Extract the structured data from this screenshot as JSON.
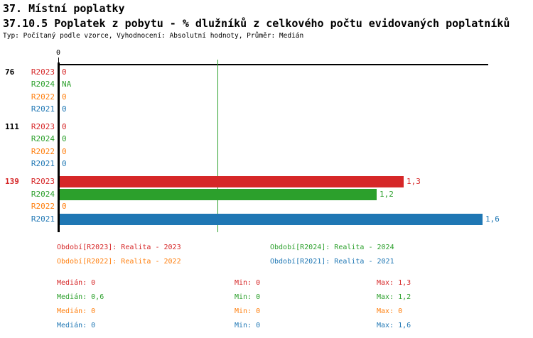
{
  "header": {
    "title": "37. Místní poplatky",
    "subtitle": "37.10.5 Poplatek z pobytu - % dlužníků z celkového počtu evidovaných poplatníků",
    "meta": "Typ: Počítaný podle vzorce, Vyhodnocení: Absolutní hodnoty, Průměr: Medián"
  },
  "chart_data": {
    "type": "bar",
    "orientation": "horizontal",
    "title": "37.10.5 Poplatek z pobytu - % dlužníků z celkového počtu evidovaných poplatníků",
    "axis": {
      "tick_label": "0",
      "xlim": [
        0,
        1.62
      ],
      "median_line_value": 0.6,
      "grid": "off"
    },
    "median_line_color": "#2ca02c",
    "series": [
      "R2023",
      "R2024",
      "R2022",
      "R2021"
    ],
    "series_colors": {
      "R2023": "#d62728",
      "R2024": "#2ca02c",
      "R2022": "#ff7f0e",
      "R2021": "#1f77b4"
    },
    "groups": [
      {
        "label": "76",
        "label_color": "#000000",
        "bars": [
          {
            "series": "R2023",
            "value": 0,
            "value_label": "0"
          },
          {
            "series": "R2024",
            "value": null,
            "value_label": "NA"
          },
          {
            "series": "R2022",
            "value": 0,
            "value_label": "0"
          },
          {
            "series": "R2021",
            "value": 0,
            "value_label": "0"
          }
        ]
      },
      {
        "label": "111",
        "label_color": "#000000",
        "bars": [
          {
            "series": "R2023",
            "value": 0,
            "value_label": "0"
          },
          {
            "series": "R2024",
            "value": 0,
            "value_label": "0"
          },
          {
            "series": "R2022",
            "value": 0,
            "value_label": "0"
          },
          {
            "series": "R2021",
            "value": 0,
            "value_label": "0"
          }
        ]
      },
      {
        "label": "139",
        "label_color": "#d62728",
        "bars": [
          {
            "series": "R2023",
            "value": 1.3,
            "value_label": "1,3"
          },
          {
            "series": "R2024",
            "value": 1.2,
            "value_label": "1,2"
          },
          {
            "series": "R2022",
            "value": 0,
            "value_label": "0"
          },
          {
            "series": "R2021",
            "value": 1.6,
            "value_label": "1,6"
          }
        ]
      }
    ]
  },
  "legend": {
    "items": [
      {
        "id": "R2023",
        "text": "Období[R2023]: Realita - 2023",
        "color": "#d62728"
      },
      {
        "id": "R2024",
        "text": "Období[R2024]: Realita - 2024",
        "color": "#2ca02c"
      },
      {
        "id": "R2022",
        "text": "Období[R2022]: Realita - 2022",
        "color": "#ff7f0e"
      },
      {
        "id": "R2021",
        "text": "Období[R2021]: Realita - 2021",
        "color": "#1f77b4"
      }
    ]
  },
  "stats": {
    "rows": [
      {
        "id": "R2023",
        "color": "#d62728",
        "median": "Medián: 0",
        "min": "Min: 0",
        "max": "Max: 1,3"
      },
      {
        "id": "R2024",
        "color": "#2ca02c",
        "median": "Medián: 0,6",
        "min": "Min: 0",
        "max": "Max: 1,2"
      },
      {
        "id": "R2022",
        "color": "#ff7f0e",
        "median": "Medián: 0",
        "min": "Min: 0",
        "max": "Max: 0"
      },
      {
        "id": "R2021",
        "color": "#1f77b4",
        "median": "Medián: 0",
        "min": "Min: 0",
        "max": "Max: 1,6"
      }
    ]
  }
}
